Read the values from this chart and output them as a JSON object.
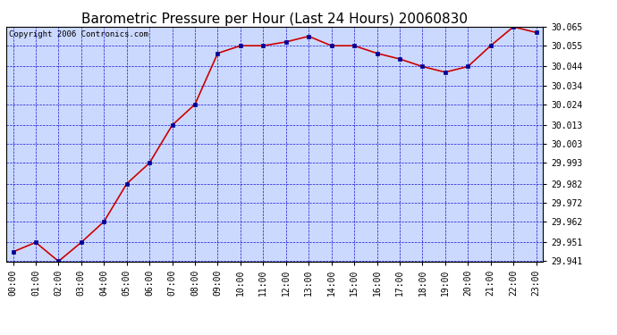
{
  "title": "Barometric Pressure per Hour (Last 24 Hours) 20060830",
  "copyright": "Copyright 2006 Contronics.com",
  "x_labels": [
    "00:00",
    "01:00",
    "02:00",
    "03:00",
    "04:00",
    "05:00",
    "06:00",
    "07:00",
    "08:00",
    "09:00",
    "10:00",
    "11:00",
    "12:00",
    "13:00",
    "14:00",
    "15:00",
    "16:00",
    "17:00",
    "18:00",
    "19:00",
    "20:00",
    "21:00",
    "22:00",
    "23:00"
  ],
  "hours": [
    0,
    1,
    2,
    3,
    4,
    5,
    6,
    7,
    8,
    9,
    10,
    11,
    12,
    13,
    14,
    15,
    16,
    17,
    18,
    19,
    20,
    21,
    22,
    23
  ],
  "pressure_values": [
    29.946,
    29.951,
    29.941,
    29.951,
    29.962,
    29.982,
    29.993,
    30.013,
    30.024,
    30.051,
    30.055,
    30.055,
    30.057,
    30.06,
    30.055,
    30.055,
    30.051,
    30.048,
    30.044,
    30.041,
    30.044,
    30.055,
    30.065,
    30.062
  ],
  "ylim_min": 29.941,
  "ylim_max": 30.065,
  "y_ticks": [
    29.941,
    29.951,
    29.962,
    29.972,
    29.982,
    29.993,
    30.003,
    30.013,
    30.024,
    30.034,
    30.044,
    30.055,
    30.065
  ],
  "line_color": "#cc0000",
  "marker_color": "#000099",
  "bg_color": "#ccd9ff",
  "grid_color": "#0000cc",
  "title_color": "#000000",
  "border_color": "#000000",
  "title_fontsize": 11,
  "copyright_fontsize": 6.5,
  "tick_fontsize": 7,
  "ytick_fontsize": 7
}
